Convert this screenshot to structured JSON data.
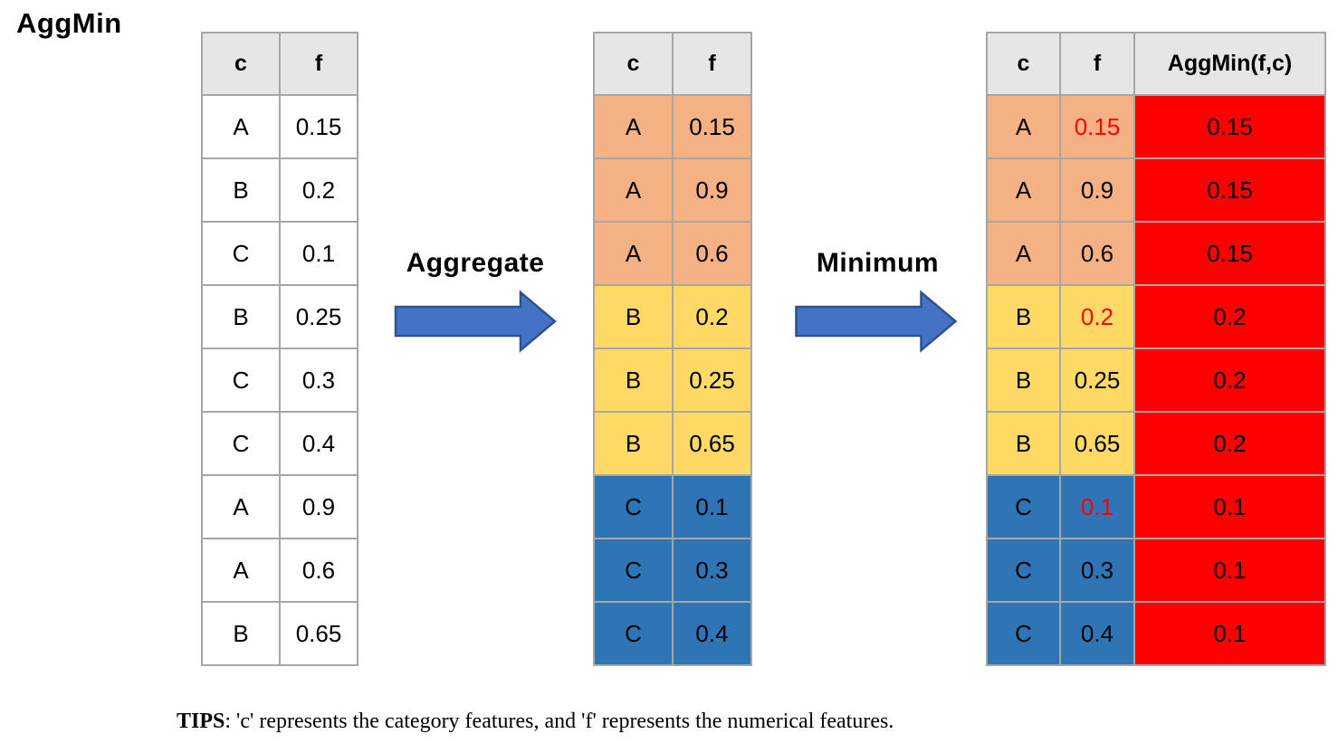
{
  "title": "AggMin",
  "colors": {
    "header_bg": "#E7E6E6",
    "border": "#A6A6A6",
    "group_a": "#F4B183",
    "group_b": "#FFD966",
    "group_c": "#2E75B6",
    "result_bg": "#FF0000",
    "min_text": "#FF0000",
    "arrow_fill": "#4472C4",
    "arrow_stroke": "#2F528F"
  },
  "input_table": {
    "headers": [
      "c",
      "f"
    ],
    "rows": [
      [
        "A",
        "0.15"
      ],
      [
        "B",
        "0.2"
      ],
      [
        "C",
        "0.1"
      ],
      [
        "B",
        "0.25"
      ],
      [
        "C",
        "0.3"
      ],
      [
        "C",
        "0.4"
      ],
      [
        "A",
        "0.9"
      ],
      [
        "A",
        "0.6"
      ],
      [
        "B",
        "0.65"
      ]
    ]
  },
  "aggregate_arrow": {
    "label": "Aggregate"
  },
  "aggregated_table": {
    "headers": [
      "c",
      "f"
    ],
    "rows": [
      {
        "c": "A",
        "f": "0.15",
        "group": "A"
      },
      {
        "c": "A",
        "f": "0.9",
        "group": "A"
      },
      {
        "c": "A",
        "f": "0.6",
        "group": "A"
      },
      {
        "c": "B",
        "f": "0.2",
        "group": "B"
      },
      {
        "c": "B",
        "f": "0.25",
        "group": "B"
      },
      {
        "c": "B",
        "f": "0.65",
        "group": "B"
      },
      {
        "c": "C",
        "f": "0.1",
        "group": "C"
      },
      {
        "c": "C",
        "f": "0.3",
        "group": "C"
      },
      {
        "c": "C",
        "f": "0.4",
        "group": "C"
      }
    ]
  },
  "minimum_arrow": {
    "label": "Minimum"
  },
  "result_table": {
    "headers": [
      "c",
      "f",
      "AggMin(f,c)"
    ],
    "rows": [
      {
        "c": "A",
        "f": "0.15",
        "agg": "0.15",
        "group": "A",
        "is_min": true
      },
      {
        "c": "A",
        "f": "0.9",
        "agg": "0.15",
        "group": "A",
        "is_min": false
      },
      {
        "c": "A",
        "f": "0.6",
        "agg": "0.15",
        "group": "A",
        "is_min": false
      },
      {
        "c": "B",
        "f": "0.2",
        "agg": "0.2",
        "group": "B",
        "is_min": true
      },
      {
        "c": "B",
        "f": "0.25",
        "agg": "0.2",
        "group": "B",
        "is_min": false
      },
      {
        "c": "B",
        "f": "0.65",
        "agg": "0.2",
        "group": "B",
        "is_min": false
      },
      {
        "c": "C",
        "f": "0.1",
        "agg": "0.1",
        "group": "C",
        "is_min": true
      },
      {
        "c": "C",
        "f": "0.3",
        "agg": "0.1",
        "group": "C",
        "is_min": false
      },
      {
        "c": "C",
        "f": "0.4",
        "agg": "0.1",
        "group": "C",
        "is_min": false
      }
    ]
  },
  "tips": {
    "label": "TIPS",
    "text": ": 'c' represents the category features, and 'f' represents the numerical features."
  }
}
